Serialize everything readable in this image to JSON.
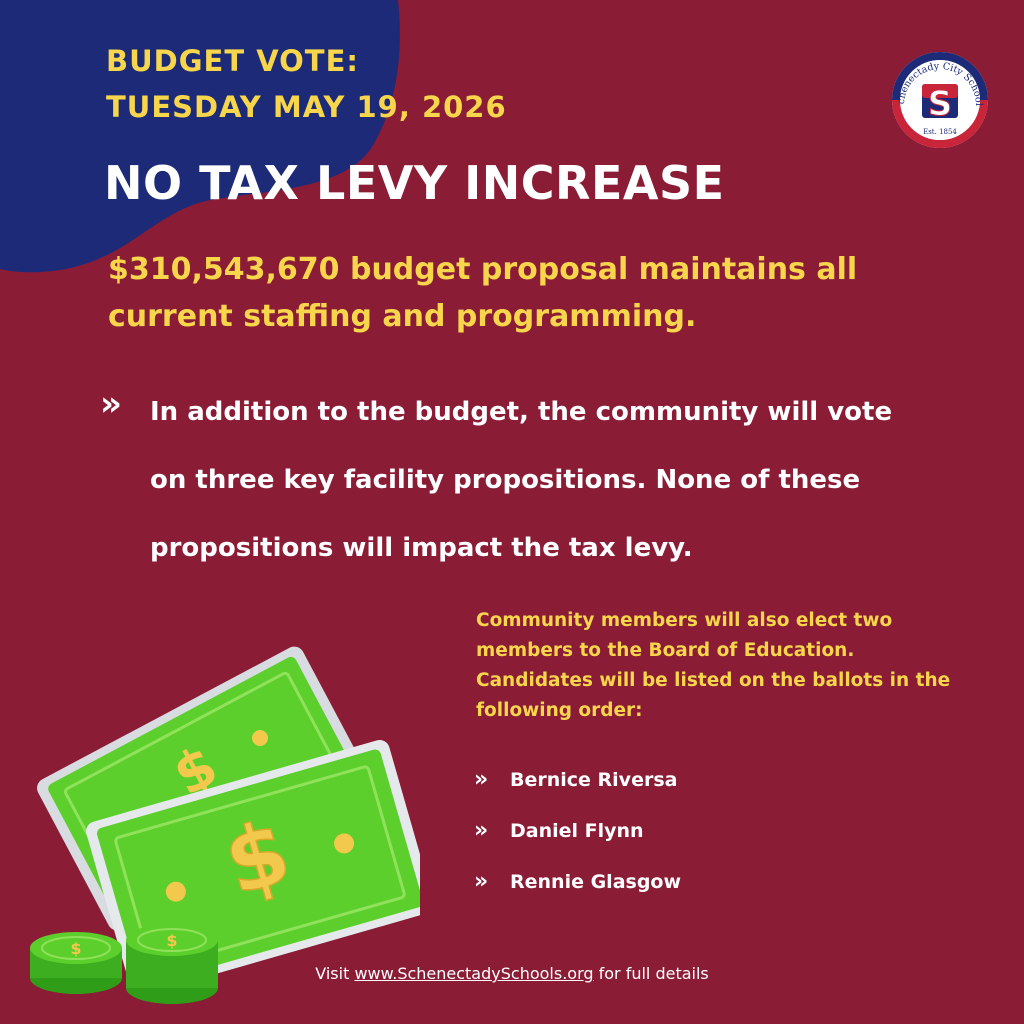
{
  "header": {
    "line1": "BUDGET VOTE:",
    "line2": "TUESDAY MAY 19, 2026",
    "headline": "NO TAX LEVY INCREASE"
  },
  "proposal": "$310,543,670 budget proposal maintains all current staffing and programming.",
  "propositions": {
    "bullet": "»",
    "text": "In addition to the budget, the community will vote on three key facility propositions. None of these propositions will impact the tax levy."
  },
  "board": {
    "intro": "Community members will also elect two members to the Board of Education. Candidates will be listed on the ballots in the following order:",
    "candidates": [
      {
        "name": "Bernice Riversa"
      },
      {
        "name": "Daniel Flynn"
      },
      {
        "name": "Rennie Glasgow"
      }
    ]
  },
  "footer": {
    "prefix": "Visit",
    "link": "www.SchenectadySchools.org",
    "suffix": "for full details"
  },
  "logo": {
    "arc_text": "Schenectady City Schools",
    "est": "Est. 1854",
    "letter": "S"
  },
  "illustration": {
    "currency_symbol": "$",
    "icon": "cash-money-icon"
  },
  "colors": {
    "background": "#8a1c36",
    "blue": "#1c2a78",
    "yellow": "#f7d64c",
    "white": "#ffffff",
    "cash_green": "#5ccf2c"
  }
}
